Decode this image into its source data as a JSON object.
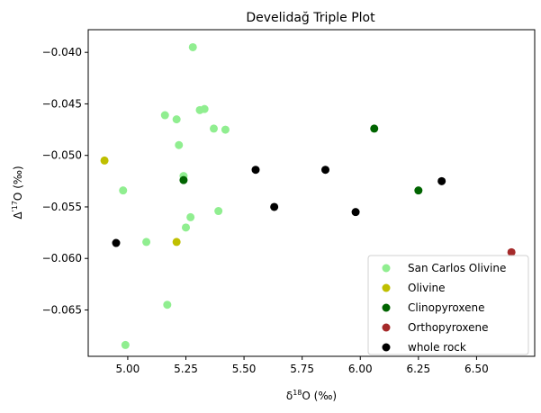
{
  "chart_data": {
    "type": "scatter",
    "title": "Develidağ Triple Plot",
    "xlabel": "δ18O (‰)",
    "xlabel_base": "δ",
    "xlabel_sup": "18",
    "xlabel_rest": "O (‰)",
    "ylabel": "Δ'17O (‰)",
    "ylabel_base": "Δ",
    "ylabel_sup": "'17",
    "ylabel_rest": "O (‰)",
    "xlim": [
      4.83,
      6.75
    ],
    "ylim": [
      -0.0695,
      -0.0378
    ],
    "xticks": [
      5.0,
      5.25,
      5.5,
      5.75,
      6.0,
      6.25,
      6.5
    ],
    "xtick_labels": [
      "5.00",
      "5.25",
      "5.50",
      "5.75",
      "6.00",
      "6.25",
      "6.50"
    ],
    "yticks": [
      -0.065,
      -0.06,
      -0.055,
      -0.05,
      -0.045,
      -0.04
    ],
    "ytick_labels": [
      "−0.065",
      "−0.060",
      "−0.055",
      "−0.050",
      "−0.045",
      "−0.040"
    ],
    "grid": false,
    "legend_position": "lower-right",
    "series": [
      {
        "name": "San Carlos Olivine",
        "color": "#90ee90",
        "points": [
          [
            5.28,
            -0.0395
          ],
          [
            5.16,
            -0.0461
          ],
          [
            5.21,
            -0.0465
          ],
          [
            5.31,
            -0.0456
          ],
          [
            5.33,
            -0.0455
          ],
          [
            5.37,
            -0.0474
          ],
          [
            5.42,
            -0.0475
          ],
          [
            5.22,
            -0.049
          ],
          [
            5.24,
            -0.052
          ],
          [
            4.98,
            -0.0534
          ],
          [
            5.39,
            -0.0554
          ],
          [
            5.27,
            -0.056
          ],
          [
            5.25,
            -0.057
          ],
          [
            5.08,
            -0.0584
          ],
          [
            5.17,
            -0.0645
          ],
          [
            4.99,
            -0.0684
          ]
        ]
      },
      {
        "name": "Olivine",
        "color": "#bfbf00",
        "points": [
          [
            4.9,
            -0.0505
          ],
          [
            5.21,
            -0.0584
          ]
        ]
      },
      {
        "name": "Clinopyroxene",
        "color": "#006400",
        "points": [
          [
            5.24,
            -0.0524
          ],
          [
            6.06,
            -0.0474
          ],
          [
            6.25,
            -0.0534
          ]
        ]
      },
      {
        "name": "Orthopyroxene",
        "color": "#a52a2a",
        "points": [
          [
            6.65,
            -0.0594
          ]
        ]
      },
      {
        "name": "whole rock",
        "color": "#000000",
        "points": [
          [
            4.95,
            -0.0585
          ],
          [
            5.55,
            -0.0514
          ],
          [
            5.63,
            -0.055
          ],
          [
            5.85,
            -0.0514
          ],
          [
            5.98,
            -0.0555
          ],
          [
            6.35,
            -0.0525
          ]
        ]
      }
    ]
  }
}
